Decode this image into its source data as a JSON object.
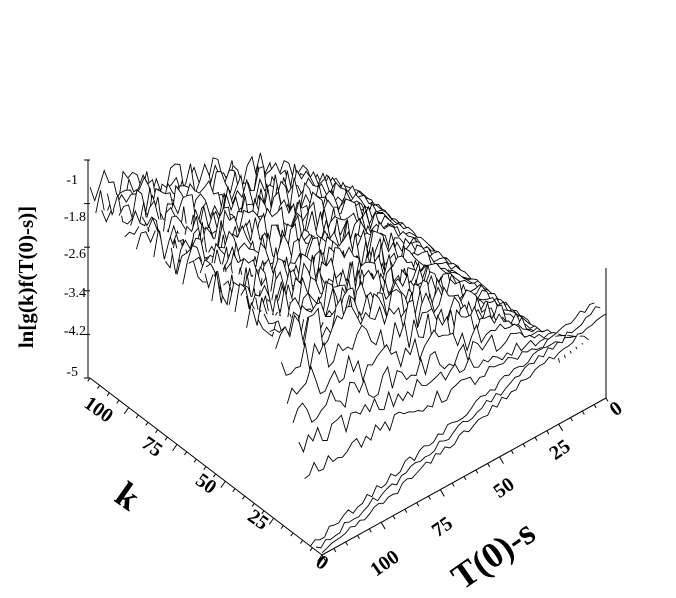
{
  "chart_data": {
    "type": "3d-waterfall",
    "z_axis": {
      "label": "ln[g(k)f(T(0)-s)]",
      "ticks": [
        "-1",
        "-1.8",
        "-2.6",
        "-3.4",
        "-4.2",
        "-5"
      ],
      "range": [
        -5,
        -1
      ]
    },
    "k_axis": {
      "label": "k",
      "ticks": [
        "0",
        "25",
        "50",
        "75",
        "100"
      ],
      "range": [
        0,
        120
      ]
    },
    "t_axis": {
      "label": "T(0)-s",
      "ticks": [
        "0",
        "25",
        "50",
        "75",
        "100"
      ],
      "range": [
        0,
        120
      ]
    },
    "description_of_surface": "Stacked profile curves over k; each curve plotted against T(0)-s. Near k=0 the curve rises from about -5 at T(0)-s=120 to about -3.3 near T(0)-s=0. For larger k the profiles are jagged and reach about -1.2 at T(0)-s near 120, decreasing toward -5 at T(0)-s near 0.",
    "grid": false,
    "legend": "none"
  }
}
